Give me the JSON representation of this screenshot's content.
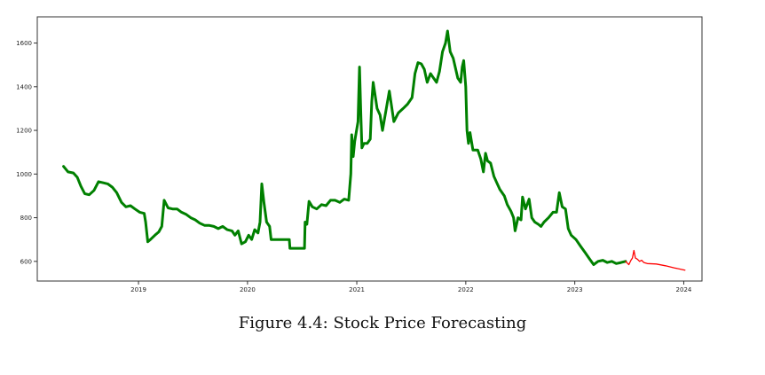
{
  "caption": "Figure 4.4: Stock Price Forecasting",
  "chart_data": {
    "type": "line",
    "title": "",
    "xlabel": "",
    "ylabel": "",
    "xlim": [
      "2018-01-27",
      "2024-03-02"
    ],
    "ylim": [
      510,
      1720
    ],
    "grid": false,
    "x_ticks": [
      "2019",
      "2020",
      "2021",
      "2022",
      "2023",
      "2024"
    ],
    "y_ticks": [
      600,
      800,
      1000,
      1200,
      1400,
      1600
    ],
    "colors": {
      "historical": "#008000",
      "forecast": "#ff0000"
    },
    "series": [
      {
        "key": "historical",
        "values": [
          [
            "2018-04-25",
            1035
          ],
          [
            "2018-05-10",
            1010
          ],
          [
            "2018-05-28",
            1005
          ],
          [
            "2018-06-10",
            985
          ],
          [
            "2018-06-22",
            945
          ],
          [
            "2018-07-05",
            910
          ],
          [
            "2018-07-20",
            905
          ],
          [
            "2018-08-05",
            925
          ],
          [
            "2018-08-20",
            965
          ],
          [
            "2018-09-05",
            960
          ],
          [
            "2018-09-20",
            955
          ],
          [
            "2018-10-05",
            940
          ],
          [
            "2018-10-20",
            915
          ],
          [
            "2018-11-05",
            870
          ],
          [
            "2018-11-20",
            850
          ],
          [
            "2018-12-05",
            855
          ],
          [
            "2018-12-20",
            840
          ],
          [
            "2019-01-05",
            825
          ],
          [
            "2019-01-20",
            820
          ],
          [
            "2019-01-25",
            780
          ],
          [
            "2019-02-01",
            690
          ],
          [
            "2019-02-10",
            700
          ],
          [
            "2019-02-25",
            720
          ],
          [
            "2019-03-10",
            735
          ],
          [
            "2019-03-20",
            760
          ],
          [
            "2019-03-28",
            880
          ],
          [
            "2019-04-10",
            845
          ],
          [
            "2019-04-25",
            840
          ],
          [
            "2019-05-10",
            840
          ],
          [
            "2019-05-25",
            825
          ],
          [
            "2019-06-10",
            815
          ],
          [
            "2019-06-25",
            800
          ],
          [
            "2019-07-10",
            790
          ],
          [
            "2019-07-25",
            775
          ],
          [
            "2019-08-10",
            765
          ],
          [
            "2019-08-25",
            765
          ],
          [
            "2019-09-10",
            760
          ],
          [
            "2019-09-25",
            750
          ],
          [
            "2019-10-10",
            760
          ],
          [
            "2019-10-25",
            745
          ],
          [
            "2019-11-10",
            740
          ],
          [
            "2019-11-20",
            720
          ],
          [
            "2019-12-01",
            740
          ],
          [
            "2019-12-12",
            680
          ],
          [
            "2019-12-25",
            690
          ],
          [
            "2020-01-05",
            720
          ],
          [
            "2020-01-15",
            700
          ],
          [
            "2020-01-25",
            745
          ],
          [
            "2020-02-05",
            730
          ],
          [
            "2020-02-12",
            780
          ],
          [
            "2020-02-18",
            955
          ],
          [
            "2020-02-25",
            870
          ],
          [
            "2020-03-05",
            780
          ],
          [
            "2020-03-15",
            760
          ],
          [
            "2020-03-20",
            700
          ],
          [
            "2020-05-20",
            700
          ],
          [
            "2020-05-22",
            660
          ],
          [
            "2020-07-10",
            660
          ],
          [
            "2020-07-12",
            780
          ],
          [
            "2020-07-18",
            770
          ],
          [
            "2020-07-25",
            875
          ],
          [
            "2020-08-05",
            850
          ],
          [
            "2020-08-20",
            840
          ],
          [
            "2020-09-05",
            860
          ],
          [
            "2020-09-20",
            855
          ],
          [
            "2020-10-05",
            880
          ],
          [
            "2020-10-20",
            880
          ],
          [
            "2020-11-05",
            870
          ],
          [
            "2020-11-20",
            885
          ],
          [
            "2020-12-05",
            880
          ],
          [
            "2020-12-12",
            1000
          ],
          [
            "2020-12-15",
            1180
          ],
          [
            "2020-12-20",
            1080
          ],
          [
            "2020-12-25",
            1150
          ],
          [
            "2021-01-05",
            1240
          ],
          [
            "2021-01-10",
            1490
          ],
          [
            "2021-01-15",
            1260
          ],
          [
            "2021-01-18",
            1120
          ],
          [
            "2021-01-25",
            1140
          ],
          [
            "2021-02-05",
            1140
          ],
          [
            "2021-02-15",
            1160
          ],
          [
            "2021-02-20",
            1330
          ],
          [
            "2021-02-25",
            1420
          ],
          [
            "2021-03-10",
            1300
          ],
          [
            "2021-03-20",
            1270
          ],
          [
            "2021-03-28",
            1200
          ],
          [
            "2021-04-10",
            1300
          ],
          [
            "2021-04-20",
            1380
          ],
          [
            "2021-05-05",
            1240
          ],
          [
            "2021-05-20",
            1280
          ],
          [
            "2021-06-05",
            1300
          ],
          [
            "2021-06-20",
            1320
          ],
          [
            "2021-07-05",
            1350
          ],
          [
            "2021-07-15",
            1460
          ],
          [
            "2021-07-25",
            1510
          ],
          [
            "2021-08-05",
            1505
          ],
          [
            "2021-08-15",
            1480
          ],
          [
            "2021-08-25",
            1420
          ],
          [
            "2021-09-05",
            1460
          ],
          [
            "2021-09-15",
            1440
          ],
          [
            "2021-09-25",
            1420
          ],
          [
            "2021-10-05",
            1470
          ],
          [
            "2021-10-15",
            1560
          ],
          [
            "2021-10-25",
            1600
          ],
          [
            "2021-11-01",
            1655
          ],
          [
            "2021-11-10",
            1560
          ],
          [
            "2021-11-20",
            1530
          ],
          [
            "2021-12-05",
            1440
          ],
          [
            "2021-12-15",
            1420
          ],
          [
            "2021-12-20",
            1490
          ],
          [
            "2021-12-25",
            1520
          ],
          [
            "2022-01-01",
            1400
          ],
          [
            "2022-01-05",
            1200
          ],
          [
            "2022-01-10",
            1140
          ],
          [
            "2022-01-15",
            1190
          ],
          [
            "2022-01-25",
            1110
          ],
          [
            "2022-02-10",
            1110
          ],
          [
            "2022-02-20",
            1070
          ],
          [
            "2022-03-01",
            1010
          ],
          [
            "2022-03-08",
            1095
          ],
          [
            "2022-03-15",
            1060
          ],
          [
            "2022-03-25",
            1050
          ],
          [
            "2022-04-05",
            990
          ],
          [
            "2022-04-15",
            960
          ],
          [
            "2022-04-25",
            930
          ],
          [
            "2022-05-10",
            900
          ],
          [
            "2022-05-20",
            860
          ],
          [
            "2022-06-01",
            830
          ],
          [
            "2022-06-10",
            800
          ],
          [
            "2022-06-15",
            740
          ],
          [
            "2022-06-25",
            800
          ],
          [
            "2022-07-05",
            790
          ],
          [
            "2022-07-10",
            895
          ],
          [
            "2022-07-20",
            840
          ],
          [
            "2022-08-01",
            885
          ],
          [
            "2022-08-10",
            800
          ],
          [
            "2022-08-20",
            780
          ],
          [
            "2022-09-01",
            770
          ],
          [
            "2022-09-10",
            760
          ],
          [
            "2022-09-20",
            780
          ],
          [
            "2022-10-05",
            800
          ],
          [
            "2022-10-20",
            825
          ],
          [
            "2022-11-01",
            825
          ],
          [
            "2022-11-10",
            915
          ],
          [
            "2022-11-20",
            850
          ],
          [
            "2022-12-01",
            840
          ],
          [
            "2022-12-10",
            750
          ],
          [
            "2022-12-20",
            720
          ],
          [
            "2023-01-05",
            700
          ],
          [
            "2023-01-20",
            670
          ],
          [
            "2023-02-05",
            640
          ],
          [
            "2023-02-20",
            610
          ],
          [
            "2023-03-05",
            585
          ],
          [
            "2023-03-20",
            600
          ],
          [
            "2023-04-05",
            605
          ],
          [
            "2023-04-20",
            595
          ],
          [
            "2023-05-05",
            600
          ],
          [
            "2023-05-20",
            590
          ],
          [
            "2023-06-05",
            595
          ],
          [
            "2023-06-20",
            600
          ]
        ]
      },
      {
        "key": "forecast",
        "values": [
          [
            "2023-06-20",
            600
          ],
          [
            "2023-07-01",
            585
          ],
          [
            "2023-07-08",
            605
          ],
          [
            "2023-07-13",
            615
          ],
          [
            "2023-07-18",
            650
          ],
          [
            "2023-07-23",
            615
          ],
          [
            "2023-07-30",
            610
          ],
          [
            "2023-08-06",
            600
          ],
          [
            "2023-08-13",
            605
          ],
          [
            "2023-08-20",
            595
          ],
          [
            "2023-09-01",
            590
          ],
          [
            "2023-10-01",
            588
          ],
          [
            "2023-11-01",
            580
          ],
          [
            "2023-12-01",
            570
          ],
          [
            "2024-01-05",
            560
          ]
        ]
      }
    ]
  }
}
